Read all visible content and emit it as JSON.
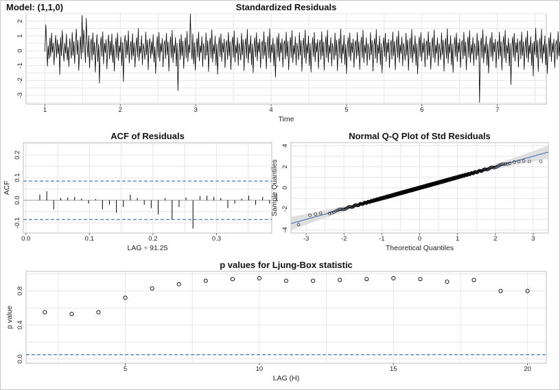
{
  "model_label": "Model: (1,1,0)",
  "chart_data": [
    {
      "type": "line",
      "title": "Standardized Residuals",
      "xlabel": "Time",
      "ylabel": "",
      "xlim": [
        0.75,
        7.65
      ],
      "ylim": [
        -3.6,
        2.5
      ],
      "xticks": [
        1,
        2,
        3,
        4,
        5,
        6,
        7
      ],
      "yticks": [
        -3,
        -2,
        -1,
        0,
        1,
        2
      ],
      "grid": true,
      "series": [
        {
          "x_start": 1.0,
          "x_step": 0.01096,
          "values": [
            -0.05,
            1.78,
            0.62,
            -1.05,
            0.35,
            -0.55,
            0.88,
            -0.42,
            1.21,
            -0.12,
            0.54,
            -0.95,
            0.31,
            1.05,
            -0.48,
            0.76,
            -0.22,
            0.45,
            -1.62,
            0.92,
            -0.35,
            1.38,
            0.08,
            -0.72,
            0.51,
            -0.18,
            1.15,
            -0.64,
            0.27,
            -1.08,
            0.84,
            0.19,
            -0.52,
            1.26,
            -0.33,
            0.65,
            -0.87,
            0.42,
            1.48,
            -0.26,
            0.71,
            -1.35,
            0.13,
            0.97,
            -0.58,
            2.4,
            -0.15,
            1.42,
            0.33,
            -0.82,
            2.21,
            0.56,
            -0.44,
            1.05,
            -1.18,
            0.38,
            0.82,
            -0.66,
            1.23,
            -0.29,
            0.59,
            -1.45,
            0.18,
            1.12,
            -0.74,
            0.46,
            -2.2,
            0.25,
            0.95,
            -0.38,
            1.3,
            -0.9,
            0.52,
            -0.15,
            0.78,
            -1.25,
            0.3,
            1.08,
            -0.56,
            0.67,
            -0.32,
            1.16,
            -0.8,
            0.42,
            -1.4,
            0.21,
            0.88,
            -0.47,
            1.22,
            -0.68,
            0.36,
            -0.12,
            0.94,
            -1.02,
            0.58,
            -2.1,
            0.44,
            1.05,
            -0.5,
            0.72,
            -0.28,
            1.35,
            -0.85,
            0.2,
            0.66,
            -0.62,
            1.18,
            -0.36,
            0.55,
            -1.12,
            0.27,
            0.9,
            -0.43,
            1.52,
            -0.7,
            0.33,
            -0.18,
            1.02,
            -0.95,
            0.48,
            0.12,
            -0.6,
            1.28,
            -0.3,
            0.74,
            -1.3,
            0.4,
            0.85,
            -0.52,
            0.62,
            -0.24,
            1.1,
            -0.78,
            0.3,
            -1.55,
            0.16,
            0.98,
            -0.45,
            1.25,
            -0.72,
            0.5,
            -0.1,
            0.86,
            -1.1,
            0.35,
            0.7,
            -0.55,
            1.2,
            -0.3,
            0.62,
            -1.38,
            0.24,
            0.96,
            -0.48,
            1.4,
            -0.82,
            0.4,
            -0.2,
            0.92,
            -1.05,
            0.52,
            -2.7,
            -0.4,
            0.8,
            -0.6,
            1.1,
            -0.35,
            0.66,
            -1.2,
            0.28,
            0.9,
            -0.5,
            1.32,
            -0.76,
            0.44,
            -0.16,
            2.5,
            0.3,
            -0.58,
            1.15,
            -0.9,
            0.56,
            -1.32,
            0.2,
            0.84,
            -0.44,
            1.28,
            -0.7,
            0.38,
            -0.14,
            0.96,
            -1.08,
            0.5,
            0.1,
            -0.62,
            1.22,
            -0.32,
            0.7,
            -1.42,
            0.34,
            0.88,
            -0.5,
            1.44,
            -0.8,
            0.42,
            -0.22,
            1.0,
            -0.98,
            0.46,
            -1.6,
            0.18,
            0.92,
            -0.4,
            1.18,
            -0.74,
            0.54,
            -0.12,
            0.82,
            -1.15,
            0.3,
            0.72,
            -0.6,
            1.26,
            -0.36,
            0.64,
            -1.28,
            0.26,
            0.94,
            -0.46,
            1.36,
            -0.78,
            0.4,
            -0.18,
            0.9,
            -1.0,
            0.5,
            0.05,
            -0.66,
            1.2,
            -0.3,
            0.76,
            -1.35,
            0.32,
            0.86,
            -0.52,
            1.46,
            -0.84,
            0.44,
            -0.2,
            1.04,
            -0.96,
            0.48,
            -1.5,
            0.2,
            0.9,
            -0.42,
            1.24,
            -0.7,
            0.58,
            -0.1,
            0.8,
            -1.18,
            0.34,
            0.68,
            -0.56,
            1.3,
            -0.34,
            0.6,
            -1.25,
            0.28,
            0.98,
            -0.5,
            1.5,
            -0.8,
            0.42,
            -0.16,
            0.88,
            -1.02,
            0.46,
            -1.8,
            0.22,
            0.94,
            -0.44,
            1.2,
            -0.72,
            0.56,
            -0.14,
            0.84,
            -1.12,
            0.36,
            0.7,
            -0.58,
            1.28,
            -0.38,
            0.66,
            -1.3,
            0.24,
            0.92,
            -0.48,
            1.38,
            -0.82,
            0.38,
            -0.24,
            0.96,
            -0.98,
            0.52,
            0.08,
            -0.64,
            1.24,
            -0.32,
            0.72,
            -1.4,
            0.3,
            0.88,
            -0.5,
            1.42,
            -0.86,
            0.46,
            -0.2,
            1.02,
            -1.0,
            0.5,
            -1.45,
            0.16,
            0.9,
            -0.4,
            1.26,
            -0.76,
            0.54,
            -0.12,
            0.78,
            -1.2,
            0.32,
            0.74,
            -0.6,
            1.3,
            -0.36,
            0.62,
            -1.32,
            0.26,
            0.96,
            -0.46,
            1.4,
            -0.8,
            0.4,
            -0.2,
            0.92,
            -1.04,
            0.5,
            0.04,
            -0.62,
            1.22,
            -0.34,
            0.74,
            -1.36,
            0.34,
            0.84,
            -0.5,
            1.48,
            -0.84,
            0.44,
            -0.22,
            1.06,
            -0.94,
            0.46,
            -1.55,
            0.2,
            0.92,
            -0.42,
            1.22,
            -0.7,
            0.56,
            -0.14,
            0.82,
            -1.14,
            0.36,
            0.7,
            -0.56,
            1.26,
            -0.34,
            0.62,
            -1.28,
            0.26,
            0.94,
            -0.48,
            1.4,
            -0.82,
            0.4,
            -0.18,
            0.9,
            -1.0,
            0.48,
            0.06,
            -0.64,
            1.24,
            -0.3,
            0.72,
            -1.38,
            0.32,
            0.86,
            -0.52,
            1.44,
            -0.84,
            0.42,
            -0.2,
            1.0,
            -0.96,
            0.5,
            -1.5,
            0.18,
            0.9,
            -0.4,
            1.2,
            -0.74,
            0.56,
            -0.12,
            0.8,
            -1.16,
            0.34,
            0.72,
            -0.58,
            1.28,
            -0.36,
            0.64,
            -1.3,
            0.28,
            0.96,
            -0.46,
            1.36,
            -0.8,
            0.42,
            -0.2,
            0.94,
            -1.02,
            0.52,
            0.1,
            -0.66,
            1.2,
            -0.32,
            0.76,
            -1.34,
            0.3,
            0.88,
            -0.5,
            1.46,
            -0.82,
            0.44,
            -0.22,
            1.02,
            -0.98,
            0.48,
            -1.58,
            0.2,
            0.94,
            -0.42,
            1.24,
            -0.72,
            0.54,
            -0.14,
            0.84,
            -1.1,
            0.34,
            0.7,
            -0.6,
            1.3,
            -0.34,
            0.6,
            -1.26,
            0.26,
            0.92,
            -0.48,
            1.42,
            -0.8,
            0.4,
            -0.2,
            0.9,
            -1.02,
            0.5,
            0.06,
            -0.62,
            1.22,
            -0.3,
            0.74,
            -1.4,
            0.32,
            0.86,
            -0.52,
            1.5,
            -0.86,
            0.46,
            -0.18,
            1.04,
            -0.96,
            0.48,
            -1.48,
            0.18,
            0.92,
            -0.4,
            1.22,
            -0.74,
            0.56,
            -0.12,
            0.82,
            -1.14,
            0.36,
            0.72,
            -0.56,
            1.26,
            -0.36,
            0.62,
            -1.3,
            0.24,
            0.94,
            -0.46,
            1.38,
            -0.8,
            0.42,
            -0.22,
            0.92,
            -1.0,
            0.5,
            0.08,
            -0.64,
            1.2,
            -0.34,
            0.7,
            -3.5,
            0.3,
            0.88,
            -0.5,
            1.44,
            -0.84,
            0.44,
            -0.2,
            1.0,
            -0.98,
            0.46,
            -1.52,
            0.2,
            0.9,
            -0.42,
            1.26,
            -0.7,
            0.58,
            -0.1,
            0.8,
            -1.18,
            0.34,
            0.68,
            -0.58,
            1.28,
            -0.38,
            0.64,
            -1.32,
            0.28,
            0.96,
            -0.5,
            1.4,
            -0.82,
            0.4,
            -0.18,
            0.88,
            -1.04,
            0.5,
            -2.3,
            0.22,
            0.94,
            -0.44,
            1.2,
            -0.72,
            0.56,
            -0.14,
            0.84,
            -1.12,
            0.36,
            0.7,
            -0.56,
            1.28,
            -0.34,
            0.62,
            -1.28,
            0.26,
            0.92,
            -0.48,
            1.36,
            -0.8,
            0.4,
            -0.2,
            0.96,
            -1.0,
            0.52,
            -1.72,
            0.64,
            -0.28,
            1.55,
            -0.48,
            0.72,
            -1.42,
            0.3,
            0.86,
            -0.52,
            1.46,
            -0.84,
            0.44,
            -0.2,
            1.02,
            -0.96,
            0.48,
            -1.55,
            0.18,
            0.9,
            -0.4,
            1.24,
            -0.74,
            0.54,
            -0.12,
            0.82,
            -1.16,
            0.34,
            0.72,
            -0.6,
            1.3,
            -0.36,
            0.6,
            -1.3,
            0.26,
            0.94,
            -0.46,
            1.38,
            -0.82,
            0.42,
            -0.2,
            0.9,
            -1.02,
            0.5,
            0.05,
            -0.62,
            1.22,
            -0.3,
            0.74,
            -1.36,
            0.32,
            0.88,
            -0.52,
            1.48,
            -0.84,
            0.44,
            -0.22,
            1.04,
            -0.98,
            0.46,
            -1.5,
            0.2,
            0.92,
            -0.4,
            1.22,
            -0.72,
            0.56,
            -0.14,
            0.8,
            -1.12,
            0.36,
            0.7,
            -1.62,
            0.42,
            -0.56,
            0.72
          ]
        }
      ]
    },
    {
      "type": "bar",
      "title": "ACF of Residuals",
      "xlabel": "LAG ÷ 91.25",
      "ylabel": "ACF",
      "xlim": [
        -0.004,
        0.387
      ],
      "ylim": [
        -0.145,
        0.255
      ],
      "xticks": [
        0.0,
        0.1,
        0.2,
        0.3
      ],
      "yticks": [
        -0.1,
        0.0,
        0.1,
        0.2
      ],
      "conf_band": 0.085,
      "lag_step": 0.010959,
      "acf": [
        0.025,
        0.04,
        -0.04,
        0.01,
        0.012,
        0.015,
        0.008,
        -0.015,
        0.006,
        -0.04,
        -0.02,
        -0.055,
        -0.03,
        0.025,
        0.01,
        -0.02,
        -0.035,
        -0.062,
        0.01,
        -0.085,
        -0.03,
        0.012,
        -0.125,
        0.018,
        0.02,
        0.015,
        0.01,
        -0.035,
        -0.015,
        0.008,
        0.02,
        -0.02,
        0.015,
        -0.015,
        0.03
      ]
    },
    {
      "type": "scatter",
      "title": "Normal Q-Q Plot of Std Residuals",
      "xlabel": "Theoretical Quantiles",
      "ylabel": "Sample Quantiles",
      "xlim": [
        -3.4,
        3.4
      ],
      "ylim": [
        -4.3,
        4.3
      ],
      "xticks": [
        -3,
        -2,
        -1,
        0,
        1,
        2,
        3
      ],
      "yticks": [
        -4,
        -2,
        0,
        2,
        4
      ],
      "reference_line": {
        "intercept": 0.0,
        "slope": 1.0
      },
      "n_points": 640,
      "extremes": [
        [
          -3.2,
          -3.5
        ],
        [
          -2.9,
          -2.6
        ],
        [
          -2.75,
          -2.5
        ],
        [
          -2.62,
          -2.4
        ],
        [
          2.5,
          2.45
        ],
        [
          2.62,
          2.5
        ],
        [
          2.75,
          2.55
        ],
        [
          2.9,
          2.5
        ],
        [
          3.2,
          2.5
        ]
      ]
    },
    {
      "type": "scatter",
      "title": "p values for Ljung-Box statistic",
      "xlabel": "LAG (H)",
      "ylabel": "p value",
      "xlim": [
        1.3,
        20.7
      ],
      "ylim": [
        -0.05,
        1.03
      ],
      "xticks": [
        5,
        10,
        15,
        20
      ],
      "yticks": [
        0.0,
        0.4,
        0.8
      ],
      "significance_line": 0.05,
      "x": [
        2,
        3,
        4,
        5,
        6,
        7,
        8,
        9,
        10,
        11,
        12,
        13,
        14,
        15,
        16,
        17,
        18,
        19,
        20
      ],
      "y": [
        0.55,
        0.53,
        0.55,
        0.72,
        0.83,
        0.88,
        0.92,
        0.94,
        0.95,
        0.92,
        0.92,
        0.93,
        0.94,
        0.95,
        0.94,
        0.91,
        0.93,
        0.8,
        0.8
      ]
    }
  ]
}
